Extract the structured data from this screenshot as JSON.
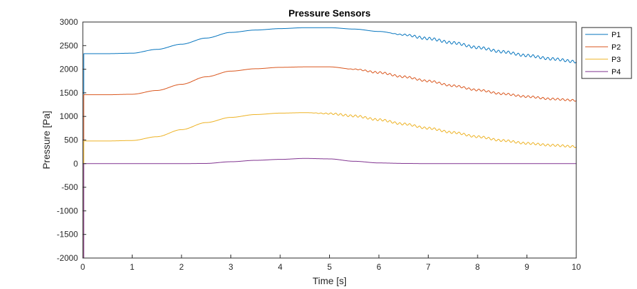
{
  "chart_data": {
    "type": "line",
    "title": "Pressure Sensors",
    "xlabel": "Time [s]",
    "ylabel": "Pressure [Pa]",
    "xlim": [
      0,
      10
    ],
    "ylim": [
      -2000,
      3000
    ],
    "xticks": [
      0,
      1,
      2,
      3,
      4,
      5,
      6,
      7,
      8,
      9,
      10
    ],
    "yticks": [
      -2000,
      -1500,
      -1000,
      -500,
      0,
      500,
      1000,
      1500,
      2000,
      2500,
      3000
    ],
    "grid": false,
    "legend_position": "top-right",
    "x": [
      0.0,
      0.05,
      0.5,
      1.0,
      1.5,
      2.0,
      2.5,
      3.0,
      3.5,
      4.0,
      4.5,
      5.0,
      5.5,
      6.0,
      6.5,
      7.0,
      7.5,
      8.0,
      8.5,
      9.0,
      9.5,
      10.0
    ],
    "series": [
      {
        "name": "P1",
        "color": "#0072BD",
        "values": [
          2330,
          2330,
          2330,
          2340,
          2420,
          2530,
          2660,
          2780,
          2830,
          2860,
          2880,
          2880,
          2850,
          2800,
          2730,
          2650,
          2560,
          2460,
          2370,
          2290,
          2220,
          2160
        ],
        "oscillation": {
          "start": 6.2,
          "amplitude": 28,
          "period": 0.1
        }
      },
      {
        "name": "P2",
        "color": "#D95319",
        "values": [
          1460,
          1460,
          1460,
          1470,
          1550,
          1680,
          1840,
          1960,
          2010,
          2040,
          2050,
          2050,
          2000,
          1930,
          1840,
          1750,
          1650,
          1560,
          1480,
          1420,
          1370,
          1340
        ],
        "oscillation": {
          "start": 5.3,
          "amplitude": 20,
          "period": 0.1
        }
      },
      {
        "name": "P3",
        "color": "#EDB120",
        "values": [
          480,
          480,
          480,
          490,
          570,
          720,
          870,
          980,
          1040,
          1070,
          1080,
          1060,
          1010,
          930,
          840,
          750,
          660,
          570,
          490,
          430,
          390,
          360
        ],
        "oscillation": {
          "start": 4.6,
          "amplitude": 22,
          "period": 0.1
        }
      },
      {
        "name": "P4",
        "color": "#7E2F8E",
        "values": [
          0,
          0,
          0,
          0,
          0,
          0,
          5,
          40,
          70,
          90,
          110,
          100,
          50,
          15,
          5,
          0,
          0,
          0,
          0,
          0,
          0,
          0
        ]
      }
    ],
    "transient": {
      "x": 0.02,
      "min": -2000,
      "max": 2330
    }
  }
}
